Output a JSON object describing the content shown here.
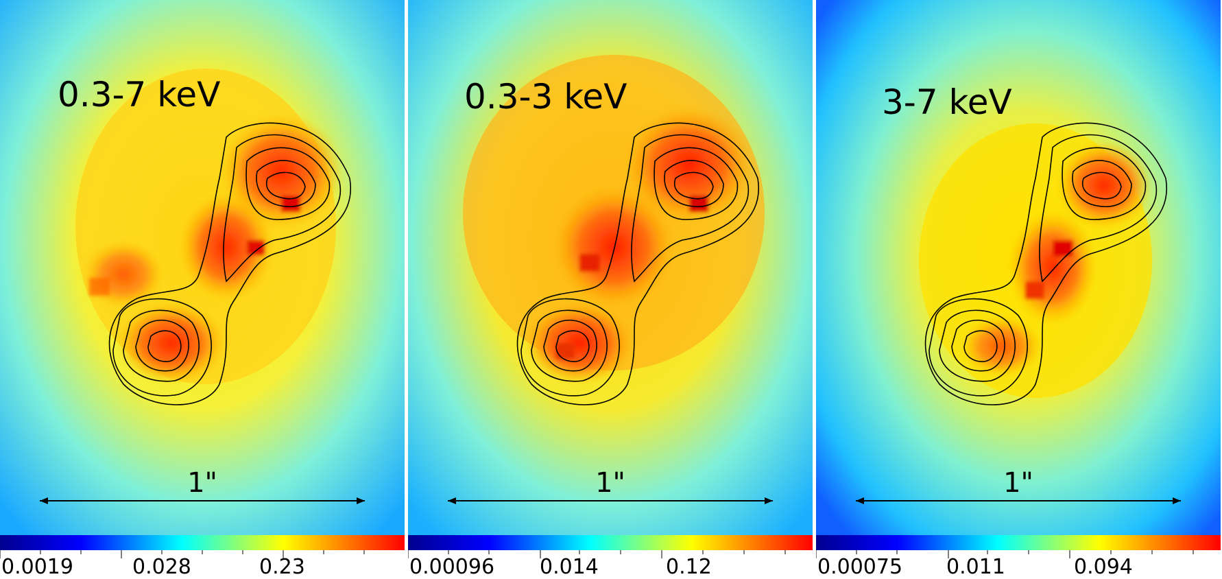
{
  "panels": [
    {
      "band_label": "0.3-7 keV",
      "scale_label": "1\"",
      "colorbar_labels": [
        "0.0019",
        "0.028",
        "0.23"
      ]
    },
    {
      "band_label": "0.3-3 keV",
      "scale_label": "1\"",
      "colorbar_labels": [
        "0.00096",
        "0.014",
        "0.12"
      ]
    },
    {
      "band_label": "3-7 keV",
      "scale_label": "1\"",
      "colorbar_labels": [
        "0.00075",
        "0.011",
        "0.094"
      ]
    }
  ],
  "colormap": [
    "#00008f",
    "#0000ff",
    "#00ffff",
    "#ffff00",
    "#ff8000",
    "#ff0000"
  ]
}
